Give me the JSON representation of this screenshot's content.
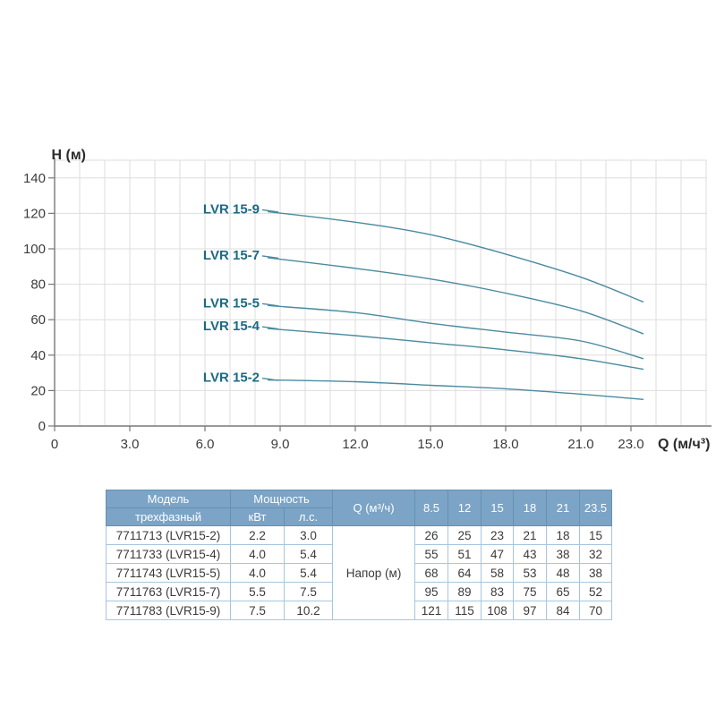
{
  "chart_data": {
    "type": "line",
    "title": "",
    "xlabel": "Q (м/ч³)",
    "ylabel": "H (м)",
    "x": [
      8.5,
      12,
      15,
      18,
      21,
      23.5
    ],
    "series": [
      {
        "name": "LVR 15-9",
        "values": [
          121,
          115,
          108,
          97,
          84,
          70
        ]
      },
      {
        "name": "LVR 15-7",
        "values": [
          95,
          89,
          83,
          75,
          65,
          52
        ]
      },
      {
        "name": "LVR 15-5",
        "values": [
          68,
          64,
          58,
          53,
          48,
          38
        ]
      },
      {
        "name": "LVR 15-4",
        "values": [
          55,
          51,
          47,
          43,
          38,
          32
        ]
      },
      {
        "name": "LVR 15-2",
        "values": [
          26,
          25,
          23,
          21,
          18,
          15
        ]
      }
    ],
    "xlim": [
      0,
      26
    ],
    "ylim": [
      0,
      150
    ],
    "x_ticks": [
      0,
      3,
      6,
      9,
      12,
      15,
      18,
      21,
      23
    ],
    "x_tick_labels": [
      "0",
      "3.0",
      "6.0",
      "9.0",
      "12.0",
      "15.0",
      "18.0",
      "21.0",
      "23.0"
    ],
    "y_ticks": [
      0,
      20,
      40,
      60,
      80,
      100,
      120,
      140
    ],
    "grid": true,
    "legend_position": "inline-labels-left-of-curves",
    "colors": {
      "curve": "#4a8b9f",
      "series_label": "#1c6a85",
      "grid": "#dddddd",
      "axis": "#787878",
      "tick_text": "#3c3c3c"
    }
  },
  "table": {
    "header": {
      "model": "Модель",
      "model_sub": "трехфазный",
      "power": "Мощность",
      "power_kw": "кВт",
      "power_hp": "л.с.",
      "q_label": "Q (м³/ч)",
      "q_values": [
        "8.5",
        "12",
        "15",
        "18",
        "21",
        "23.5"
      ],
      "head_label": "Напор (м)"
    },
    "rows": [
      {
        "model": "7711713 (LVR15-2)",
        "kw": "2.2",
        "hp": "3.0",
        "heads": [
          "26",
          "25",
          "23",
          "21",
          "18",
          "15"
        ]
      },
      {
        "model": "7711733 (LVR15-4)",
        "kw": "4.0",
        "hp": "5.4",
        "heads": [
          "55",
          "51",
          "47",
          "43",
          "38",
          "32"
        ]
      },
      {
        "model": "7711743 (LVR15-5)",
        "kw": "4.0",
        "hp": "5.4",
        "heads": [
          "68",
          "64",
          "58",
          "53",
          "48",
          "38"
        ]
      },
      {
        "model": "7711763 (LVR15-7)",
        "kw": "5.5",
        "hp": "7.5",
        "heads": [
          "95",
          "89",
          "83",
          "75",
          "65",
          "52"
        ]
      },
      {
        "model": "7711783 (LVR15-9)",
        "kw": "7.5",
        "hp": "10.2",
        "heads": [
          "121",
          "115",
          "108",
          "97",
          "84",
          "70"
        ]
      }
    ],
    "colors": {
      "header_bg": "#7ba4c6",
      "header_border": "#6691b2",
      "header_text": "#ffffff",
      "body_border": "#a6c6df",
      "body_text": "#3a3a3a"
    }
  }
}
